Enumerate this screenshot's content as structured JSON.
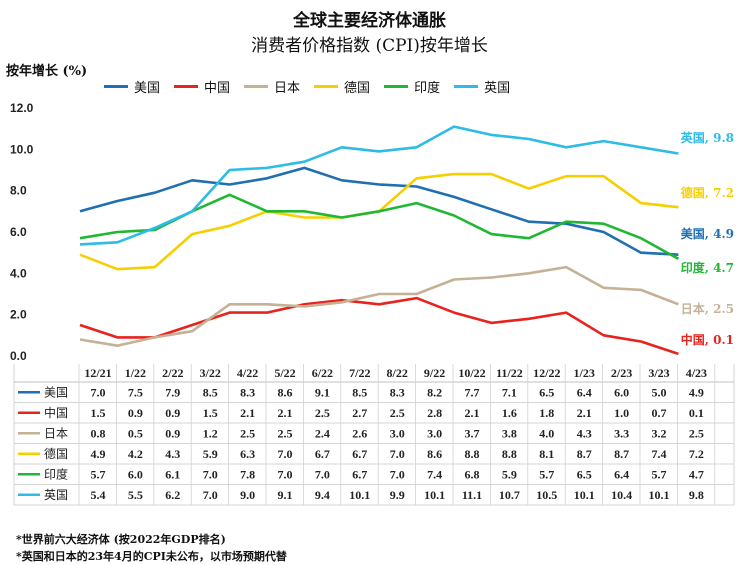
{
  "chart_data": {
    "type": "line",
    "title": "全球主要经济体通胀",
    "subtitle": "消费者价格指数 (CPI)按年增长",
    "ylabel": "按年增长 (%)",
    "ylim": [
      0,
      12
    ],
    "yticks": [
      "0.0",
      "2.0",
      "4.0",
      "6.0",
      "8.0",
      "10.0",
      "12.0"
    ],
    "categories": [
      "12/21",
      "1/22",
      "2/22",
      "3/22",
      "4/22",
      "5/22",
      "6/22",
      "7/22",
      "8/22",
      "9/22",
      "10/22",
      "11/22",
      "12/22",
      "1/23",
      "2/23",
      "3/23",
      "4/23"
    ],
    "legend_position": "top",
    "grid": false,
    "series": [
      {
        "name": "美国",
        "color": "#1f6fb2",
        "values": [
          7.0,
          7.5,
          7.9,
          8.5,
          8.3,
          8.6,
          9.1,
          8.5,
          8.3,
          8.2,
          7.7,
          7.1,
          6.5,
          6.4,
          6.0,
          5.0,
          4.9
        ],
        "end_label": "美国, 4.9"
      },
      {
        "name": "中国",
        "color": "#e8231e",
        "values": [
          1.5,
          0.9,
          0.9,
          1.5,
          2.1,
          2.1,
          2.5,
          2.7,
          2.5,
          2.8,
          2.1,
          1.6,
          1.8,
          2.1,
          1.0,
          0.7,
          0.1
        ],
        "end_label": "中国, 0.1"
      },
      {
        "name": "日本",
        "color": "#c4b196",
        "values": [
          0.8,
          0.5,
          0.9,
          1.2,
          2.5,
          2.5,
          2.4,
          2.6,
          3.0,
          3.0,
          3.7,
          3.8,
          4.0,
          4.3,
          3.3,
          3.2,
          2.5
        ],
        "end_label": "日本, 2.5"
      },
      {
        "name": "德国",
        "color": "#f5d000",
        "values": [
          4.9,
          4.2,
          4.3,
          5.9,
          6.3,
          7.0,
          6.7,
          6.7,
          7.0,
          8.6,
          8.8,
          8.8,
          8.1,
          8.7,
          8.7,
          7.4,
          7.2
        ],
        "end_label": "德国, 7.2"
      },
      {
        "name": "印度",
        "color": "#20b735",
        "values": [
          5.7,
          6.0,
          6.1,
          7.0,
          7.8,
          7.0,
          7.0,
          6.7,
          7.0,
          7.4,
          6.8,
          5.9,
          5.7,
          6.5,
          6.4,
          5.7,
          4.7
        ],
        "end_label": "印度, 4.7"
      },
      {
        "name": "英国",
        "color": "#2dbbe8",
        "values": [
          5.4,
          5.5,
          6.2,
          7.0,
          9.0,
          9.1,
          9.4,
          10.1,
          9.9,
          10.1,
          11.1,
          10.7,
          10.5,
          10.1,
          10.4,
          10.1,
          9.8
        ],
        "end_label": "英国, 9.8"
      }
    ],
    "table_rows": [
      [
        "7.0",
        "7.5",
        "7.9",
        "8.5",
        "8.3",
        "8.6",
        "9.1",
        "8.5",
        "8.3",
        "8.2",
        "7.7",
        "7.1",
        "6.5",
        "6.4",
        "6.0",
        "5.0",
        "4.9"
      ],
      [
        "1.5",
        "0.9",
        "0.9",
        "1.5",
        "2.1",
        "2.1",
        "2.5",
        "2.7",
        "2.5",
        "2.8",
        "2.1",
        "1.6",
        "1.8",
        "2.1",
        "1.0",
        "0.7",
        "0.1"
      ],
      [
        "0.8",
        "0.5",
        "0.9",
        "1.2",
        "2.5",
        "2.5",
        "2.4",
        "2.6",
        "3.0",
        "3.0",
        "3.7",
        "3.8",
        "4.0",
        "4.3",
        "3.3",
        "3.2",
        "2.5"
      ],
      [
        "4.9",
        "4.2",
        "4.3",
        "5.9",
        "6.3",
        "7.0",
        "6.7",
        "6.7",
        "7.0",
        "8.6",
        "8.8",
        "8.8",
        "8.1",
        "8.7",
        "8.7",
        "7.4",
        "7.2"
      ],
      [
        "5.7",
        "6.0",
        "6.1",
        "7.0",
        "7.8",
        "7.0",
        "7.0",
        "6.7",
        "7.0",
        "7.4",
        "6.8",
        "5.9",
        "5.7",
        "6.5",
        "6.4",
        "5.7",
        "4.7"
      ],
      [
        "5.4",
        "5.5",
        "6.2",
        "7.0",
        "9.0",
        "9.1",
        "9.4",
        "10.1",
        "9.9",
        "10.1",
        "11.1",
        "10.7",
        "10.5",
        "10.1",
        "10.4",
        "10.1",
        "9.8"
      ]
    ]
  },
  "notes": {
    "note1": "*世界前六大经济体 (按2022年GDP排名)",
    "note2": "*英国和日本的23年4月的CPI未公布，以市场预期代替"
  }
}
